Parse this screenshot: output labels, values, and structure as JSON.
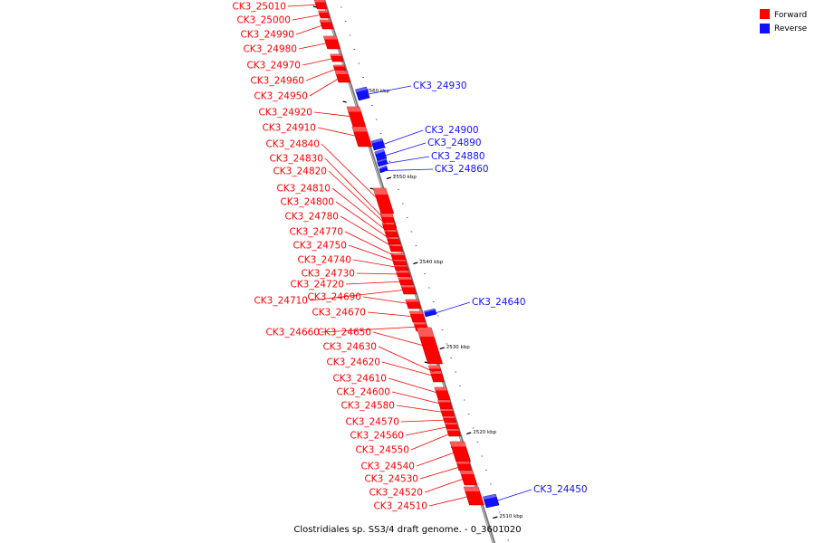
{
  "legend": {
    "forward_label": "Forward",
    "reverse_label": "Reverse",
    "forward_color": "#ff0000",
    "reverse_color": "#1010ff"
  },
  "caption": "Clostridiales sp. SS3/4 draft genome. - 0_3601020",
  "axis_ticks": [
    "2560 kbp",
    "2550 kbp",
    "2540 kbp",
    "2530 kbp",
    "2520 kbp",
    "2510 kbp"
  ],
  "forward_genes": [
    "CK3_25010",
    "CK3_25000",
    "CK3_24990",
    "CK3_24980",
    "CK3_24970",
    "CK3_24960",
    "CK3_24950",
    "CK3_24920",
    "CK3_24910",
    "CK3_24840",
    "CK3_24830",
    "CK3_24820",
    "CK3_24810",
    "CK3_24800",
    "CK3_24780",
    "CK3_24770",
    "CK3_24750",
    "CK3_24740",
    "CK3_24730",
    "CK3_24720",
    "CK3_24710",
    "CK3_24690",
    "CK3_24670",
    "CK3_24660",
    "CK3_24650",
    "CK3_24630",
    "CK3_24620",
    "CK3_24610",
    "CK3_24600",
    "CK3_24580",
    "CK3_24570",
    "CK3_24560",
    "CK3_24550",
    "CK3_24540",
    "CK3_24530",
    "CK3_24520",
    "CK3_24510"
  ],
  "reverse_genes": [
    "CK3_24930",
    "CK3_24900",
    "CK3_24890",
    "CK3_24880",
    "CK3_24860",
    "CK3_24640",
    "CK3_24450"
  ]
}
